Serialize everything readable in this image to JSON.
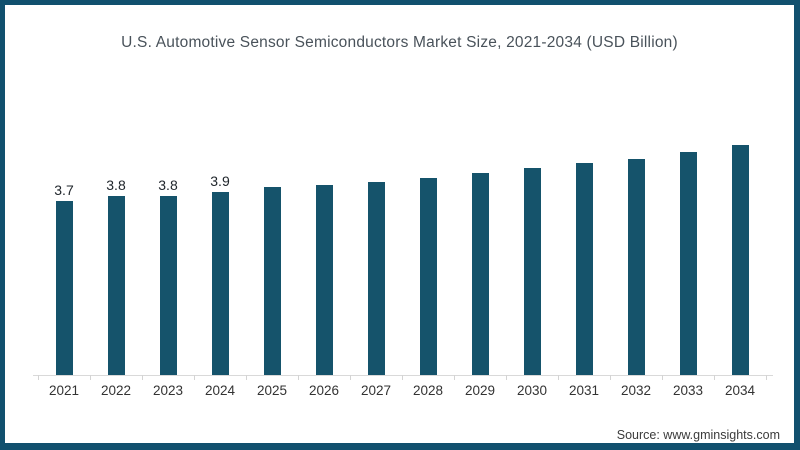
{
  "page": {
    "title": "U.S. Automotive Sensor Semiconductors Market Size, 2021-2034 (USD Billion)",
    "source": "Source: www.gminsights.com"
  },
  "colors": {
    "bar": "#15536b",
    "frame": "#11506e",
    "axis": "#d9d9d9",
    "title_text": "#49525a",
    "value_label_text": "#1e242a",
    "axis_label_text": "#333333"
  },
  "chart_data": {
    "type": "bar",
    "title": "U.S. Automotive Sensor Semiconductors Market Size, 2021-2034 (USD Billion)",
    "categories": [
      "2021",
      "2022",
      "2023",
      "2024",
      "2025",
      "2026",
      "2027",
      "2028",
      "2029",
      "2030",
      "2031",
      "2032",
      "2033",
      "2034"
    ],
    "values": [
      3.7,
      3.8,
      3.8,
      3.9,
      4.0,
      4.05,
      4.1,
      4.2,
      4.3,
      4.4,
      4.5,
      4.6,
      4.75,
      4.9
    ],
    "data_labels": [
      "3.7",
      "3.8",
      "3.8",
      "3.9",
      "",
      "",
      "",
      "",
      "",
      "",
      "",
      "",
      "",
      ""
    ],
    "xlabel": "",
    "ylabel": "",
    "ylim": [
      0,
      5.2
    ],
    "grid": false,
    "legend": false,
    "y_axis_shown": false,
    "source": "Source: www.gminsights.com"
  }
}
